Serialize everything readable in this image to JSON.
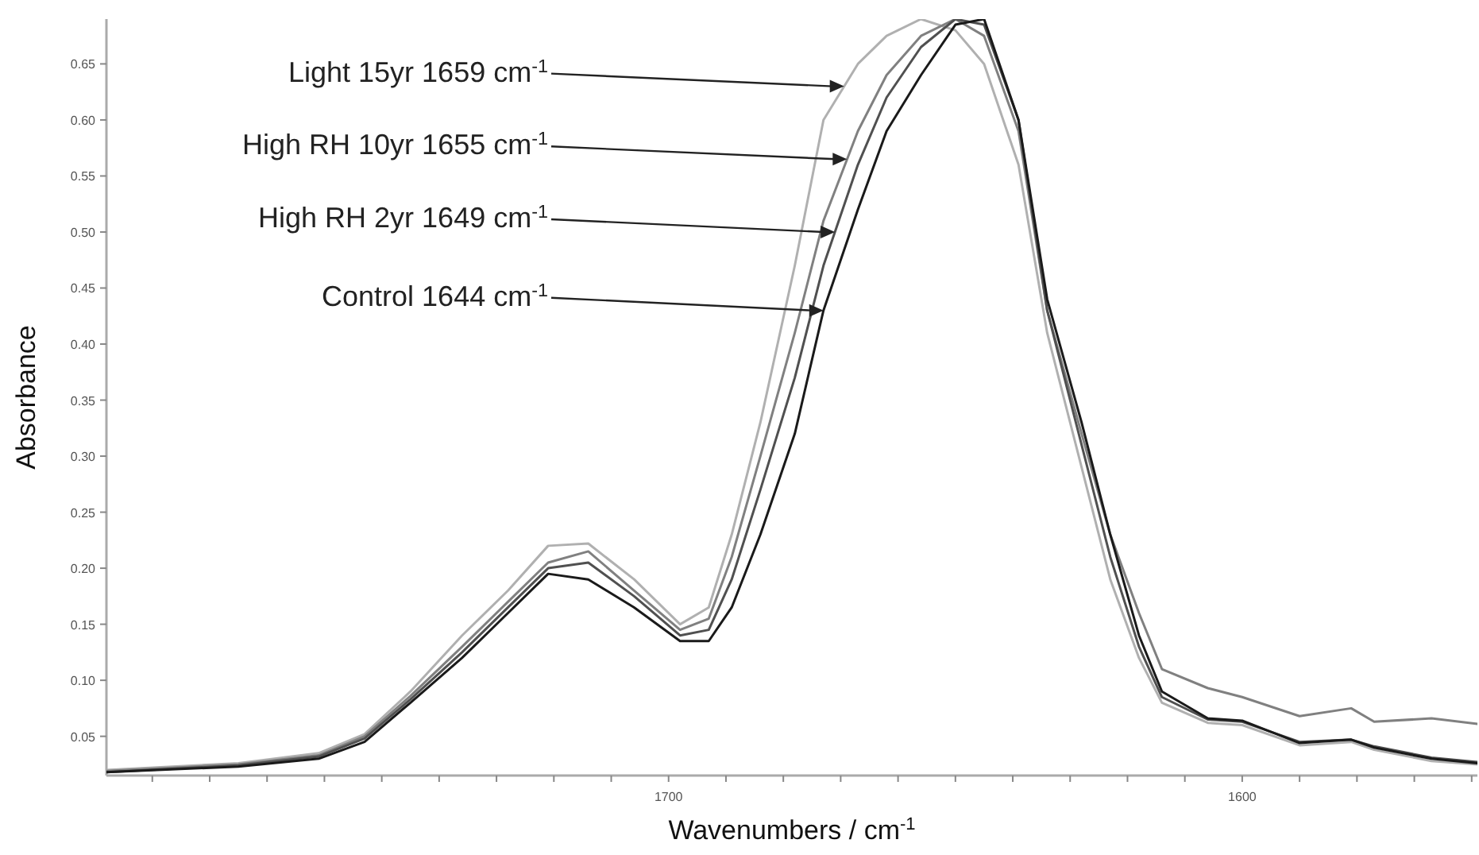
{
  "chart_data": {
    "type": "line",
    "xlabel": "Wavenumbers / cm$^{-1}$",
    "ylabel": "Absorbance",
    "x": [
      1798,
      1775,
      1761,
      1753,
      1745,
      1736,
      1728,
      1721,
      1714,
      1706,
      1698,
      1693,
      1689,
      1684,
      1678,
      1673,
      1667,
      1662,
      1656,
      1650,
      1645,
      1639,
      1634,
      1628,
      1623,
      1618,
      1614,
      1606,
      1600,
      1590,
      1581,
      1577,
      1567,
      1559
    ],
    "series": [
      {
        "color": "#b0b0b0",
        "values": [
          0.02,
          0.026,
          0.035,
          0.052,
          0.09,
          0.14,
          0.18,
          0.22,
          0.222,
          0.19,
          0.15,
          0.165,
          0.23,
          0.33,
          0.47,
          0.6,
          0.65,
          0.675,
          0.69,
          0.68,
          0.65,
          0.56,
          0.41,
          0.29,
          0.19,
          0.12,
          0.08,
          0.062,
          0.06,
          0.042,
          0.045,
          0.038,
          0.028,
          0.025
        ]
      },
      {
        "color": "#808080",
        "values": [
          0.019,
          0.025,
          0.033,
          0.05,
          0.086,
          0.13,
          0.17,
          0.205,
          0.215,
          0.18,
          0.145,
          0.155,
          0.21,
          0.3,
          0.41,
          0.51,
          0.59,
          0.64,
          0.675,
          0.69,
          0.675,
          0.59,
          0.43,
          0.32,
          0.23,
          0.16,
          0.11,
          0.093,
          0.085,
          0.068,
          0.075,
          0.063,
          0.066,
          0.061
        ]
      },
      {
        "color": "#505050",
        "values": [
          0.018,
          0.024,
          0.032,
          0.048,
          0.083,
          0.125,
          0.165,
          0.2,
          0.205,
          0.175,
          0.14,
          0.145,
          0.19,
          0.27,
          0.37,
          0.47,
          0.56,
          0.62,
          0.665,
          0.69,
          0.685,
          0.6,
          0.43,
          0.31,
          0.21,
          0.13,
          0.085,
          0.065,
          0.063,
          0.045,
          0.047,
          0.041,
          0.031,
          0.027
        ]
      },
      {
        "color": "#1a1a1a",
        "values": [
          0.018,
          0.023,
          0.03,
          0.045,
          0.08,
          0.12,
          0.16,
          0.195,
          0.19,
          0.165,
          0.135,
          0.135,
          0.165,
          0.23,
          0.32,
          0.43,
          0.52,
          0.59,
          0.64,
          0.685,
          0.69,
          0.6,
          0.44,
          0.33,
          0.23,
          0.14,
          0.09,
          0.066,
          0.064,
          0.044,
          0.047,
          0.04,
          0.03,
          0.026
        ]
      }
    ],
    "xlim": [
      1798,
      1559
    ],
    "xticks": [
      {
        "value": 1790,
        "label": null
      },
      {
        "value": 1780,
        "label": null
      },
      {
        "value": 1770,
        "label": null
      },
      {
        "value": 1760,
        "label": null
      },
      {
        "value": 1750,
        "label": null
      },
      {
        "value": 1740,
        "label": null
      },
      {
        "value": 1730,
        "label": null
      },
      {
        "value": 1720,
        "label": null
      },
      {
        "value": 1710,
        "label": null
      },
      1700,
      {
        "value": 1690,
        "label": null
      },
      {
        "value": 1680,
        "label": null
      },
      {
        "value": 1670,
        "label": null
      },
      {
        "value": 1660,
        "label": null
      },
      {
        "value": 1650,
        "label": null
      },
      {
        "value": 1640,
        "label": null
      },
      {
        "value": 1630,
        "label": null
      },
      {
        "value": 1620,
        "label": null
      },
      {
        "value": 1610,
        "label": null
      },
      1600,
      {
        "value": 1590,
        "label": null
      },
      {
        "value": 1580,
        "label": null
      },
      {
        "value": 1570,
        "label": null
      },
      {
        "value": 1560,
        "label": null
      }
    ],
    "ylim": [
      0.015,
      0.69
    ],
    "yticks": [
      {
        "value": 0.05,
        "label": "0.05"
      },
      {
        "value": 0.1,
        "label": "0.10"
      },
      {
        "value": 0.15,
        "label": "0.15"
      },
      {
        "value": 0.2,
        "label": "0.20"
      },
      {
        "value": 0.25,
        "label": "0.25"
      },
      {
        "value": 0.3,
        "label": "0.30"
      },
      {
        "value": 0.35,
        "label": "0.35"
      },
      {
        "value": 0.4,
        "label": "0.40"
      },
      {
        "value": 0.45,
        "label": "0.45"
      },
      {
        "value": 0.5,
        "label": "0.50"
      },
      {
        "value": 0.55,
        "label": "0.55"
      },
      {
        "value": 0.6,
        "label": "0.60"
      },
      {
        "value": 0.65,
        "label": "0.65"
      }
    ],
    "annotations": [
      {
        "text": "Light 15yr 1659 cm$^{-1}$",
        "x": 1669.4,
        "y": 0.63
      },
      {
        "text": "High RH 10yr 1655 cm$^{-1}$",
        "x": 1668.9,
        "y": 0.565
      },
      {
        "text": "High RH 2yr 1649 cm$^{-1}$",
        "x": 1671,
        "y": 0.5
      },
      {
        "text": "Control 1644 cm$^{-1}$",
        "x": 1673,
        "y": 0.43
      }
    ],
    "grid": false,
    "marker": "none",
    "line_style": "solid"
  }
}
